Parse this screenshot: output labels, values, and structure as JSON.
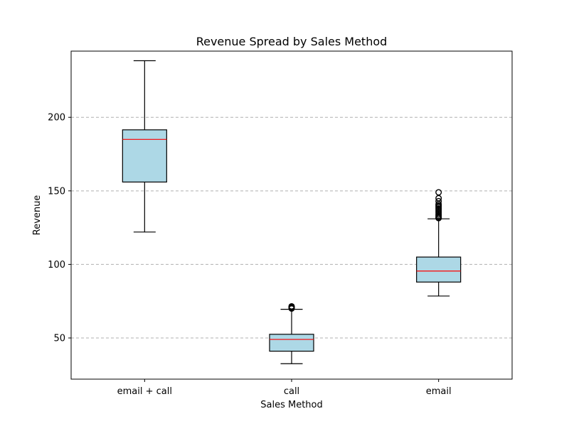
{
  "chart_data": {
    "type": "box",
    "title": "Revenue Spread by Sales Method",
    "xlabel": "Sales Method",
    "ylabel": "Revenue",
    "ylim": [
      22,
      245
    ],
    "yticks": [
      50,
      100,
      150,
      200
    ],
    "grid": "y",
    "categories": [
      "email + call",
      "call",
      "email"
    ],
    "boxes": [
      {
        "category": "email + call",
        "whisker_low": 122,
        "q1": 156,
        "median": 185,
        "q3": 191.5,
        "whisker_high": 238.5,
        "outliers": []
      },
      {
        "category": "call",
        "whisker_low": 32.5,
        "q1": 41,
        "median": 49,
        "q3": 52.5,
        "whisker_high": 69.5,
        "outliers": [
          70,
          70.5,
          71,
          71.5
        ]
      },
      {
        "category": "email",
        "whisker_low": 78.5,
        "q1": 88,
        "median": 95.5,
        "q3": 105,
        "whisker_high": 131,
        "outliers": [
          131.5,
          132,
          133,
          134,
          135,
          136,
          137,
          138,
          139,
          140,
          141,
          143,
          145,
          149
        ]
      }
    ],
    "colors": {
      "box_fill": "#add8e6",
      "box_edge": "#000000",
      "median": "#ff0000",
      "grid": "#b0b0b0"
    }
  }
}
